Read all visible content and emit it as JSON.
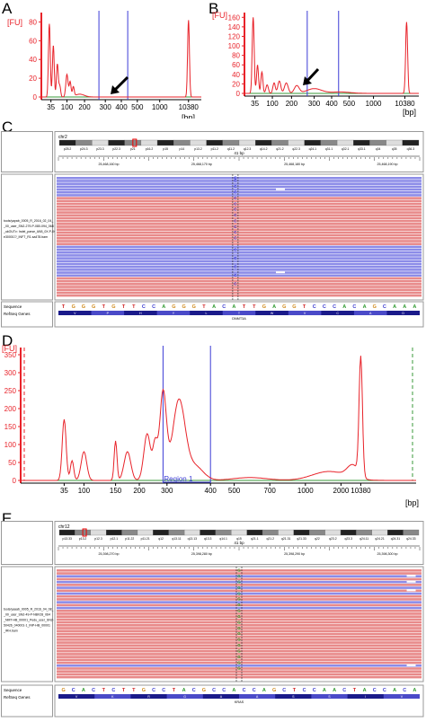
{
  "labels": {
    "a": "A",
    "b": "B",
    "c": "C",
    "d": "D",
    "e": "E"
  },
  "electropherogram": {
    "y_unit": "[FU]",
    "x_unit": "[bp]",
    "region_label": "Region 1",
    "colors": {
      "trace": "#e8232a",
      "ladder_markers": "#3b3bd6",
      "baseline": "#3a9a3a",
      "axis": "#000000"
    },
    "small_panels": {
      "x_ticks": [
        "35",
        "100",
        "200",
        "300",
        "400",
        "500",
        "1000",
        "10380"
      ],
      "a_y_ticks": [
        "0",
        "20",
        "40",
        "60",
        "80"
      ],
      "b_y_ticks": [
        "0",
        "20",
        "40",
        "60",
        "80",
        "100",
        "120",
        "140",
        "160"
      ]
    },
    "panel_d": {
      "x_ticks": [
        "35",
        "100",
        "150",
        "200",
        "300",
        "400",
        "500",
        "700",
        "1000",
        "2000",
        "10380"
      ],
      "y_ticks": [
        "0",
        "50",
        "100",
        "150",
        "200",
        "250",
        "300",
        "350"
      ]
    }
  },
  "igv_c": {
    "chromosome": "chr2",
    "cytobands": [
      "p25.2",
      "p24.3",
      "p23.3",
      "p22.3",
      "p21",
      "p16.2",
      "p15",
      "p14",
      "p13.2",
      "p11.2",
      "q11.2",
      "q12.3",
      "q14.2",
      "q21.2",
      "q22.3",
      "q24.1",
      "q31.1",
      "q32.1",
      "q33.1",
      "q34",
      "q35",
      "q36.3"
    ],
    "span": "41 bp",
    "positions": [
      "25,468,160 bp",
      "25,468,170 bp",
      "25,468,180 bp",
      "25,468,190 bp"
    ],
    "track_label": [
      "tools/yayab_0005_R_2016_02_04_",
      "_00_user_SN2-279-P-080-094_068",
      "_ukOUTv: Indel_parse_ll/48_0X.P-009",
      "e300017/_INFT_R1.sa478.bam"
    ],
    "sequence_label": "Sequence",
    "refseq_label": "RefSeq Genes",
    "sequence": [
      "T",
      "G",
      "G",
      "G",
      "T",
      "G",
      "T",
      "T",
      "C",
      "C",
      "A",
      "G",
      "G",
      "G",
      "T",
      "A",
      "C",
      "A",
      "T",
      "T",
      "G",
      "A",
      "G",
      "G",
      "T",
      "C",
      "C",
      "C",
      "A",
      "C",
      "A",
      "G",
      "C",
      "A",
      "A",
      "A"
    ],
    "amino_acids": [
      "V",
      "P",
      "H",
      "Y",
      "L",
      "T",
      "W",
      "V",
      "C",
      "A",
      "D"
    ],
    "gene": "DNMT3A",
    "variant_base": "C"
  },
  "igv_e": {
    "chromosome": "chr12",
    "cytobands": [
      "p13.33",
      "p13.2",
      "p12.3",
      "p12.1",
      "p11.22",
      "p11.21",
      "q12",
      "q13.11",
      "q13.13",
      "q13.3",
      "q14.1",
      "q15",
      "q21.1",
      "q21.2",
      "q21.31",
      "q21.33",
      "q22",
      "q23.2",
      "q23.3",
      "q24.11",
      "q24.21",
      "q24.31",
      "q24.33"
    ],
    "span": "41 bp",
    "positions": [
      "25,398,270 bp",
      "25,398,280 bp",
      "25,398,290 bp",
      "25,398,300 bp"
    ],
    "track_label": [
      "tools/yaaab_0005_R_2016_04_08_",
      "_00_user_SN2-49-P-NBV28_064",
      "_NMT-HB_00001_Pedu_user_SN2-",
      "50426_040001-1_INP-HB_00001",
      "_IRH.bam"
    ],
    "sequence_label": "Sequence",
    "refseq_label": "RefSeq Genes",
    "sequence": [
      "G",
      "C",
      "A",
      "C",
      "T",
      "C",
      "T",
      "T",
      "G",
      "C",
      "C",
      "T",
      "A",
      "C",
      "G",
      "C",
      "C",
      "A",
      "C",
      "C",
      "A",
      "G",
      "C",
      "T",
      "C",
      "C",
      "A",
      "A",
      "C",
      "T",
      "A",
      "C",
      "C",
      "A",
      "C",
      "A"
    ],
    "amino_acids": [
      "V",
      "K",
      "R",
      "G",
      "A",
      "A",
      "S",
      "S",
      "I",
      "V"
    ],
    "gene": "KRAS",
    "variant_base": "G"
  }
}
